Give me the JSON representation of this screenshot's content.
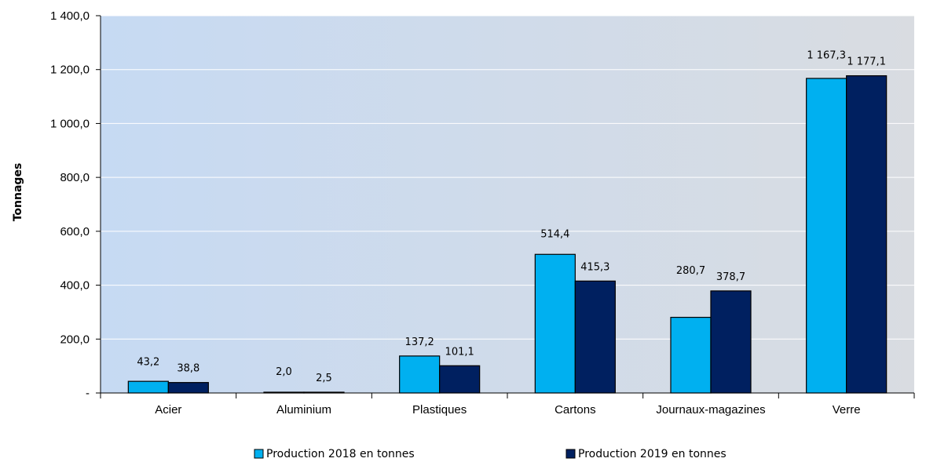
{
  "chart_data": {
    "type": "bar",
    "title": "",
    "xlabel": "",
    "ylabel": "Tonnages",
    "ylim": [
      0,
      1400
    ],
    "yticks": [
      0,
      200,
      400,
      600,
      800,
      1000,
      1200,
      1400
    ],
    "ytick_labels": [
      "-",
      "200,0",
      "400,0",
      "600,0",
      "800,0",
      "1 000,0",
      "1 200,0",
      "1 400,0"
    ],
    "grid": true,
    "legend_position": "bottom",
    "categories": [
      "Acier",
      "Aluminium",
      "Plastiques",
      "Cartons",
      "Journaux-magazines",
      "Verre"
    ],
    "series": [
      {
        "name": "Production 2018 en tonnes",
        "color": "#00B0F0",
        "values": [
          43.2,
          2.0,
          137.2,
          514.4,
          280.7,
          1167.3
        ],
        "labels": [
          "43,2",
          "2,0",
          "137,2",
          "514,4",
          "280,7",
          "1 167,3"
        ]
      },
      {
        "name": "Production 2019 en tonnes",
        "color": "#002060",
        "values": [
          38.8,
          2.5,
          101.1,
          415.3,
          378.7,
          1177.1
        ],
        "labels": [
          "38,8",
          "2,5",
          "101,1",
          "415,3",
          "378,7",
          "1 177,1"
        ]
      }
    ]
  }
}
